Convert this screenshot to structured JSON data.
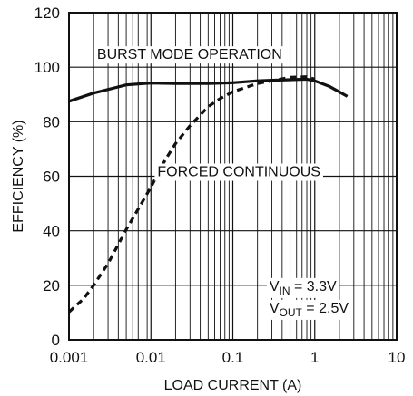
{
  "chart_data": {
    "type": "line",
    "xlabel": "LOAD CURRENT (A)",
    "ylabel": "EFFICIENCY (%)",
    "xscale": "log",
    "xlim": [
      0.001,
      10
    ],
    "ylim": [
      0,
      120
    ],
    "grid": true,
    "x_ticks": [
      "0.001",
      "0.01",
      "0.1",
      "1",
      "10"
    ],
    "y_ticks": [
      "0",
      "20",
      "40",
      "60",
      "80",
      "100",
      "120"
    ],
    "series": [
      {
        "name": "BURST MODE OPERATION",
        "style": "solid",
        "x": [
          0.001,
          0.002,
          0.005,
          0.01,
          0.02,
          0.05,
          0.1,
          0.2,
          0.3,
          0.5,
          0.8,
          1.0,
          1.5,
          2.5
        ],
        "y": [
          87.5,
          90.5,
          93.5,
          94.2,
          94.0,
          94.0,
          94.3,
          95.0,
          95.2,
          95.4,
          95.6,
          95.0,
          93.0,
          89.3
        ]
      },
      {
        "name": "FORCED CONTINUOUS",
        "style": "dashed",
        "x": [
          0.001,
          0.0015,
          0.002,
          0.003,
          0.005,
          0.007,
          0.01,
          0.015,
          0.02,
          0.03,
          0.05,
          0.07,
          0.1,
          0.2,
          0.3,
          0.5,
          0.8,
          1.0
        ],
        "y": [
          10.2,
          15.0,
          20.0,
          28.0,
          40.5,
          48.0,
          56.0,
          66.0,
          72.0,
          78.5,
          85.5,
          88.5,
          91.0,
          94.0,
          95.0,
          96.3,
          96.5,
          95.6
        ]
      }
    ],
    "annotations": [
      {
        "text": "BURST MODE OPERATION",
        "x": 0.0022,
        "y": 103
      },
      {
        "text": "FORCED CONTINUOUS",
        "x": 0.012,
        "y": 60
      },
      {
        "text": "VIN = 3.3V",
        "x": 0.28,
        "y": 18
      },
      {
        "text": "VOUT = 2.5V",
        "x": 0.28,
        "y": 10
      }
    ]
  },
  "vin_label": {
    "main": "V",
    "sub": "IN",
    "rest": " = 3.3V"
  },
  "vout_label": {
    "main": "V",
    "sub": "OUT",
    "rest": " = 2.5V"
  }
}
